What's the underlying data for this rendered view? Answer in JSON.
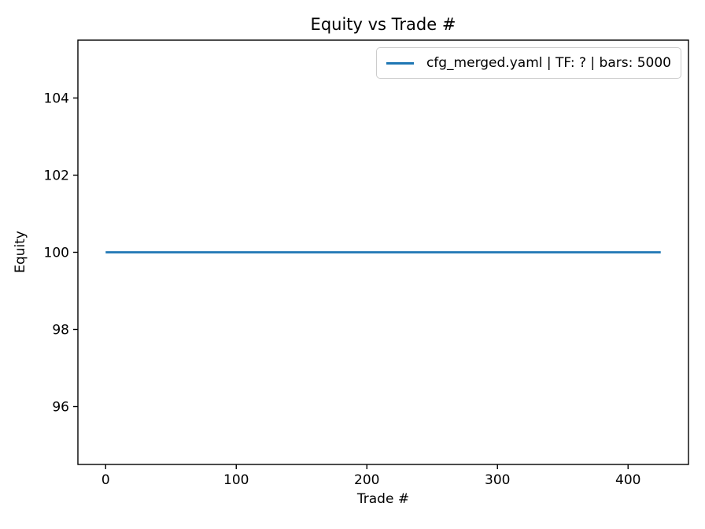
{
  "chart_data": {
    "type": "line",
    "title": "Equity vs Trade #",
    "xlabel": "Trade #",
    "ylabel": "Equity",
    "xlim": [
      -21.25,
      446.25
    ],
    "ylim": [
      94.5,
      105.5
    ],
    "xticks": [
      0,
      100,
      200,
      300,
      400
    ],
    "yticks": [
      96,
      98,
      100,
      102,
      104
    ],
    "grid": false,
    "legend_position": "upper right",
    "series": [
      {
        "name": "cfg_merged.yaml | TF: ? | bars: 5000",
        "color": "#1f77b4",
        "x": [
          0,
          425
        ],
        "y": [
          100,
          100
        ],
        "note": "flat equity curve: constant value 100 for every trade from 0 to ~425"
      }
    ]
  },
  "style": {
    "spine_color": "#000000",
    "tick_color": "#000000",
    "legend_border_color": "#cccccc",
    "background": "#ffffff"
  }
}
